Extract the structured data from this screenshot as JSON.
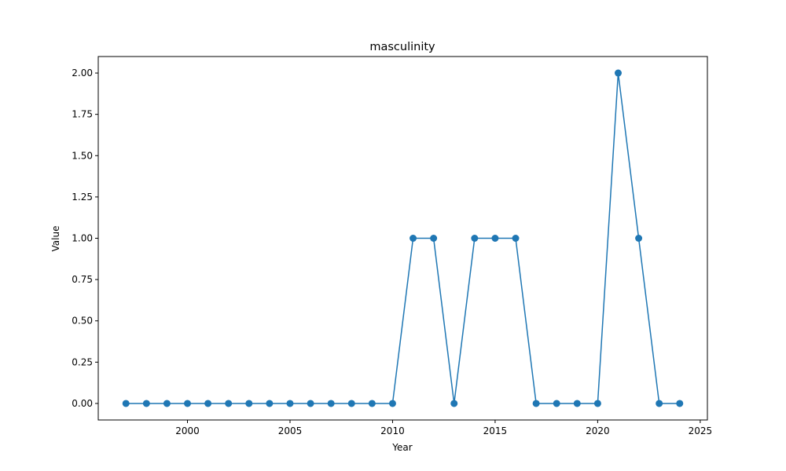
{
  "chart_data": {
    "type": "line",
    "title": "masculinity",
    "xlabel": "Year",
    "ylabel": "Value",
    "xlim": [
      1995.65,
      2025.35
    ],
    "ylim": [
      -0.1,
      2.1
    ],
    "x_ticks": [
      2000,
      2005,
      2010,
      2015,
      2020,
      2025
    ],
    "y_ticks": [
      0.0,
      0.25,
      0.5,
      0.75,
      1.0,
      1.25,
      1.5,
      1.75,
      2.0
    ],
    "y_tick_labels": [
      "0.00",
      "0.25",
      "0.50",
      "0.75",
      "1.00",
      "1.25",
      "1.50",
      "1.75",
      "2.00"
    ],
    "grid": false,
    "series": [
      {
        "color": "#1f77b4",
        "marker": "circle",
        "x": [
          1997,
          1998,
          1999,
          2000,
          2001,
          2002,
          2003,
          2004,
          2005,
          2006,
          2007,
          2008,
          2009,
          2010,
          2011,
          2012,
          2013,
          2014,
          2015,
          2016,
          2017,
          2018,
          2019,
          2020,
          2021,
          2022,
          2023,
          2024
        ],
        "y": [
          0,
          0,
          0,
          0,
          0,
          0,
          0,
          0,
          0,
          0,
          0,
          0,
          0,
          0,
          1,
          1,
          0,
          1,
          1,
          1,
          0,
          0,
          0,
          0,
          2,
          1,
          0,
          0
        ]
      }
    ]
  }
}
